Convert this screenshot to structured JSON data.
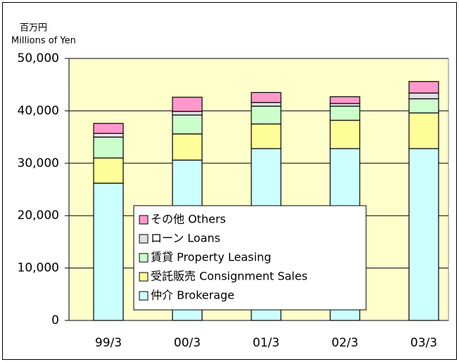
{
  "chart_data": {
    "type": "stacked_bar",
    "unit_label": "百万円",
    "unit_label_en": "Millions of Yen",
    "categories": [
      "99/3",
      "00/3",
      "01/3",
      "02/3",
      "03/3"
    ],
    "series": [
      {
        "name": "仲介 Brokerage",
        "color": "#ccffff",
        "values": [
          26200,
          30600,
          32800,
          32800,
          32800
        ]
      },
      {
        "name": "受託販売 Consignment Sales",
        "color": "#ffff99",
        "values": [
          4800,
          5000,
          4700,
          5400,
          6800
        ]
      },
      {
        "name": "賃貸 Property Leasing",
        "color": "#ccffcc",
        "values": [
          4000,
          3600,
          3400,
          2700,
          2700
        ]
      },
      {
        "name": "ローン Loans",
        "color": "#e0e0e0",
        "values": [
          700,
          700,
          700,
          500,
          1100
        ]
      },
      {
        "name": "その他 Others",
        "color": "#ff99cc",
        "values": [
          1900,
          2700,
          1900,
          1300,
          2200
        ]
      }
    ],
    "ylim": [
      0,
      50000
    ],
    "yticks": [
      0,
      {
        "value": 10000,
        "label": "10,000"
      },
      {
        "value": 20000,
        "label": "20,000"
      },
      {
        "value": 30000,
        "label": "30,000"
      },
      {
        "value": 40000,
        "label": "40,000"
      },
      {
        "value": 50000,
        "label": "50,000"
      }
    ],
    "grid": true,
    "plot_background": "#ffffcc"
  }
}
